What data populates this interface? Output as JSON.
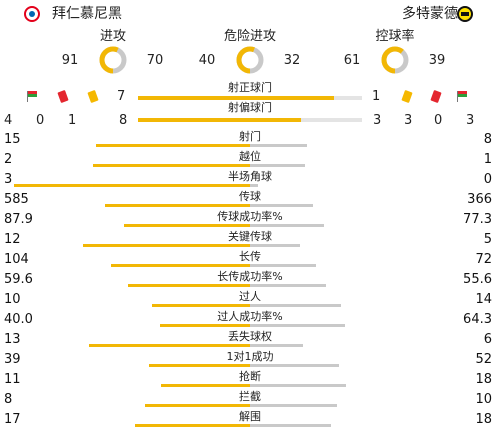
{
  "home": {
    "name": "拜仁慕尼黑",
    "color": "#e3001b"
  },
  "away": {
    "name": "多特蒙德",
    "color": "#fde100"
  },
  "donuts": [
    {
      "label": "进攻",
      "home": "91",
      "away": "70",
      "home_fraction": 0.565
    },
    {
      "label": "危险进攻",
      "home": "40",
      "away": "32",
      "home_fraction": 0.556
    },
    {
      "label": "控球率",
      "home": "61",
      "away": "39",
      "home_fraction": 0.61
    }
  ],
  "shots_on": {
    "label": "射正球门",
    "home": "7",
    "away": "1",
    "home_fraction": 0.875
  },
  "shots_off": {
    "label": "射偏球门",
    "home": "8",
    "away": "3",
    "home_fraction": 0.727
  },
  "cards_home": {
    "flags": "4",
    "red": "0",
    "yellow": "1"
  },
  "cards_away": {
    "yellow": "3",
    "red": "0",
    "flags": "3"
  },
  "stats": [
    {
      "label": "射门",
      "home": "15",
      "away": "8",
      "home_fraction": 0.652
    },
    {
      "label": "越位",
      "home": "2",
      "away": "1",
      "home_fraction": 0.667
    },
    {
      "label": "半场角球",
      "home": "3",
      "away": "0",
      "home_fraction": 1.0
    },
    {
      "label": "传球",
      "home": "585",
      "away": "366",
      "home_fraction": 0.615
    },
    {
      "label": "传球成功率%",
      "home": "87.9",
      "away": "77.3",
      "home_fraction": 0.532
    },
    {
      "label": "关键传球",
      "home": "12",
      "away": "5",
      "home_fraction": 0.706
    },
    {
      "label": "长传",
      "home": "104",
      "away": "72",
      "home_fraction": 0.591
    },
    {
      "label": "长传成功率%",
      "home": "59.6",
      "away": "55.6",
      "home_fraction": 0.517
    },
    {
      "label": "过人",
      "home": "10",
      "away": "14",
      "home_fraction": 0.417
    },
    {
      "label": "过人成功率%",
      "home": "40.0",
      "away": "64.3",
      "home_fraction": 0.383
    },
    {
      "label": "丢失球权",
      "home": "13",
      "away": "6",
      "home_fraction": 0.684
    },
    {
      "label": "1对1成功",
      "home": "39",
      "away": "52",
      "home_fraction": 0.429
    },
    {
      "label": "抢断",
      "home": "11",
      "away": "18",
      "home_fraction": 0.379
    },
    {
      "label": "拦截",
      "home": "8",
      "away": "10",
      "home_fraction": 0.444
    },
    {
      "label": "解围",
      "home": "17",
      "away": "18",
      "home_fraction": 0.486
    }
  ],
  "colors": {
    "home_bar": "#f2b705",
    "away_bar": "#c9c9c9",
    "track": "#e4e4e4",
    "yellow_card": "#f5b800",
    "red_card": "#e4262f"
  },
  "icons": {
    "flag": "corner-flag-icon",
    "red": "red-card-icon",
    "yellow": "yellow-card-icon"
  }
}
